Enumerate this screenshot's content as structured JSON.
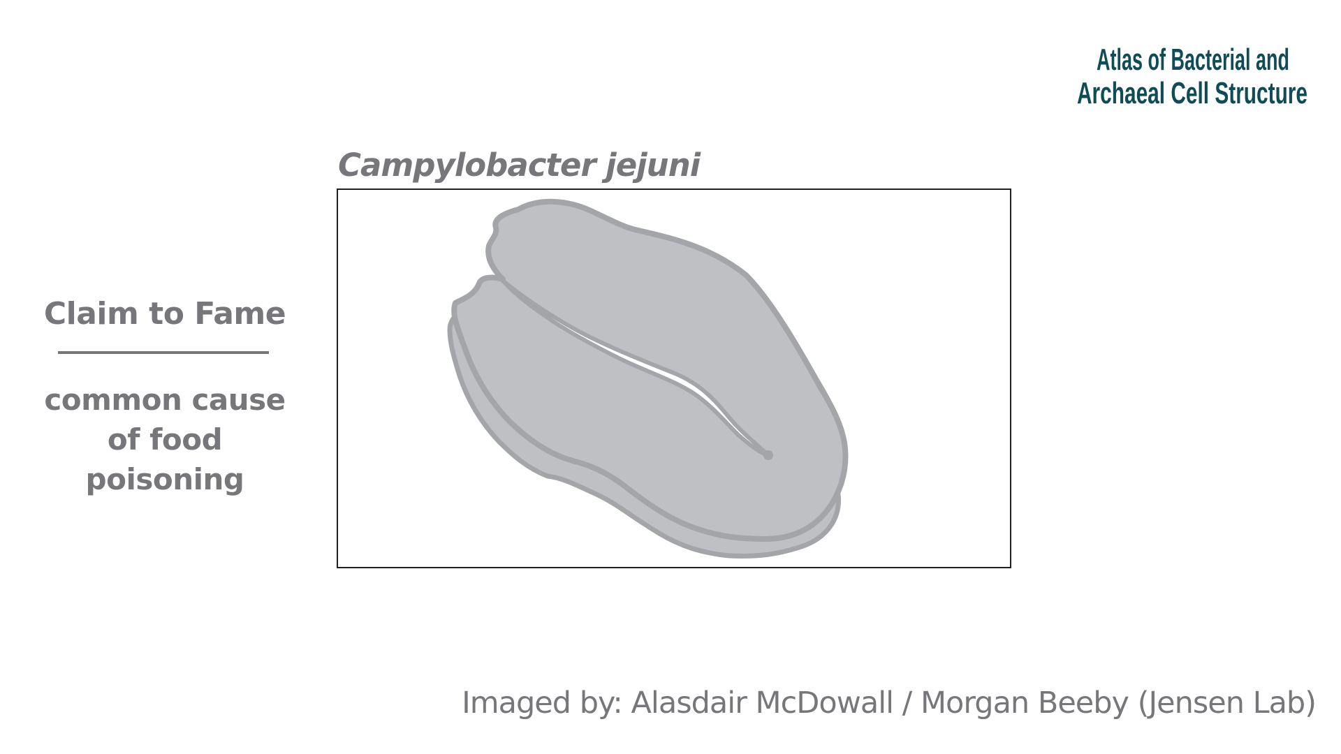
{
  "logo": {
    "icon": "atlas-logo",
    "line1": "Atlas of Bacterial and",
    "line2": "Archaeal Cell Structure",
    "color": "#0f4c55"
  },
  "species": {
    "name": "Campylobacter jejuni"
  },
  "claim": {
    "heading": "Claim to Fame",
    "line1": "common cause",
    "line2": "of food poisoning"
  },
  "credit": {
    "text": "Imaged by: Alasdair McDowall / Morgan Beeby (Jensen Lab)"
  },
  "colors": {
    "text_gray": "#77777b",
    "cell_fill": "#bfc0c3",
    "cell_outline": "#a4a5a9",
    "frame_border": "#231f20"
  }
}
